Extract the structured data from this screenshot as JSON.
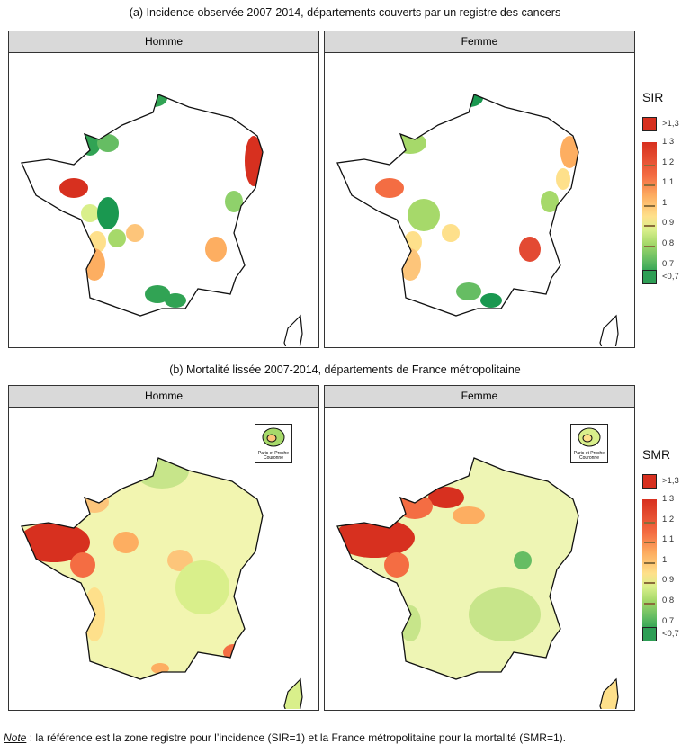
{
  "chart_data": [
    {
      "type": "map",
      "title": "(a) Incidence observée 2007-2014, départements couverts par un registre des cancers",
      "panels": [
        "Homme",
        "Femme"
      ],
      "legend": {
        "title": "SIR",
        "labels": [
          ">1,3",
          "1,3",
          "1,2",
          "1,1",
          "1",
          "0,9",
          "0,8",
          "0,7",
          "<0,7"
        ]
      },
      "colors": {
        "high": "#d7301f",
        "low": "#1a9850",
        "mid": "#ffffbf",
        "none": "#ffffff"
      }
    },
    {
      "type": "map",
      "title": "(b) Mortalité lissée 2007-2014, départements de France métropolitaine",
      "panels": [
        "Homme",
        "Femme"
      ],
      "inset": "Paris et Proche Couronne",
      "legend": {
        "title": "SMR",
        "labels": [
          ">1,3",
          "1,3",
          "1,2",
          "1,1",
          "1",
          "0,9",
          "0,8",
          "0,7",
          "<0,7"
        ]
      }
    }
  ],
  "note": {
    "label": "Note",
    "text": " : la référence est la zone registre pour l’incidence (SIR=1) et la France métropolitaine pour la mortalité (SMR=1)."
  }
}
